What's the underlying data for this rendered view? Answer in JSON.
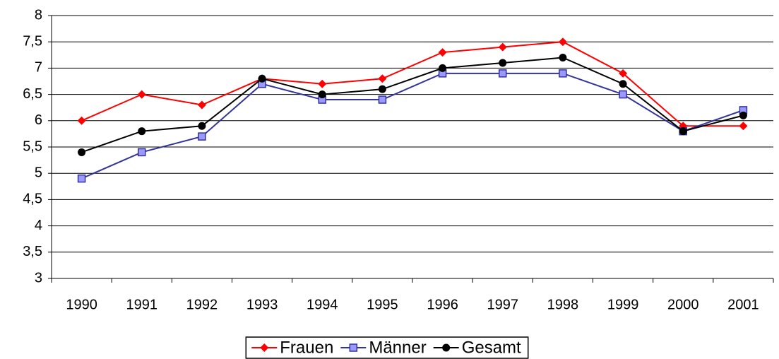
{
  "chart_data": {
    "type": "line",
    "categories": [
      "1990",
      "1991",
      "1992",
      "1993",
      "1994",
      "1995",
      "1996",
      "1997",
      "1998",
      "1999",
      "2000",
      "2001"
    ],
    "series": [
      {
        "name": "Frauen",
        "color": "#ff0000",
        "marker": "diamond",
        "values": [
          6.0,
          6.5,
          6.3,
          6.8,
          6.7,
          6.8,
          7.3,
          7.4,
          7.5,
          6.9,
          5.9,
          5.9
        ]
      },
      {
        "name": "Männer",
        "color": "#333399",
        "marker": "square",
        "values": [
          4.9,
          5.4,
          5.7,
          6.7,
          6.4,
          6.4,
          6.9,
          6.9,
          6.9,
          6.5,
          5.8,
          6.2
        ]
      },
      {
        "name": "Gesamt",
        "color": "#000000",
        "marker": "circle",
        "values": [
          5.4,
          5.8,
          5.9,
          6.8,
          6.5,
          6.6,
          7.0,
          7.1,
          7.2,
          6.7,
          5.8,
          6.1
        ]
      }
    ],
    "ylim": [
      3,
      8
    ],
    "yticks": [
      3,
      {
        "value": 3.5,
        "label": "3,5"
      },
      4,
      {
        "value": 4.5,
        "label": "4,5"
      },
      5,
      {
        "value": 5.5,
        "label": "5,5"
      },
      6,
      {
        "value": 6.5,
        "label": "6,5"
      },
      7,
      {
        "value": 7.5,
        "label": "7,5"
      },
      8
    ],
    "grid": true,
    "legend": "bottom"
  }
}
